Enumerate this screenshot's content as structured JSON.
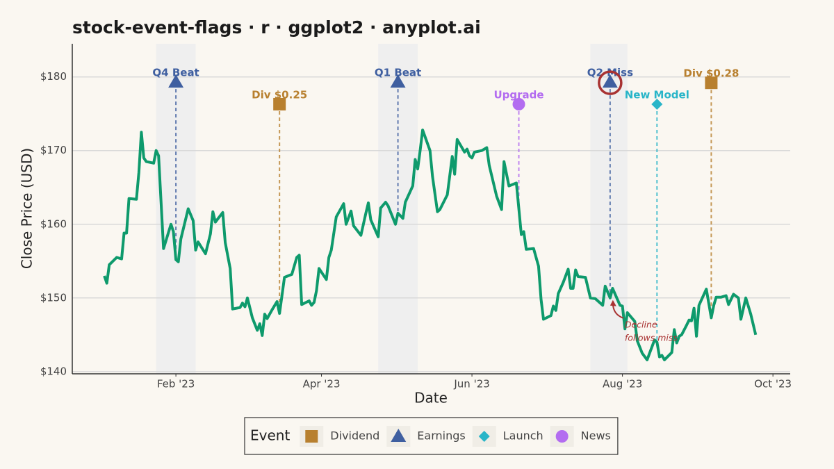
{
  "chart_data": {
    "type": "line",
    "title": "stock-event-flags · r · ggplot2 · anyplot.ai",
    "x_label": "Date",
    "y_label": "Close Price (USD)",
    "color": "#0e9a6c",
    "x": [
      "2023-01-03",
      "2023-01-04",
      "2023-01-05",
      "2023-01-08",
      "2023-01-10",
      "2023-01-11",
      "2023-01-12",
      "2023-01-13",
      "2023-01-16",
      "2023-01-17",
      "2023-01-18",
      "2023-01-19",
      "2023-01-20",
      "2023-01-23",
      "2023-01-24",
      "2023-01-25",
      "2023-01-27",
      "2023-01-30",
      "2023-01-31",
      "2023-02-01",
      "2023-02-02",
      "2023-02-03",
      "2023-02-06",
      "2023-02-08",
      "2023-02-09",
      "2023-02-10",
      "2023-02-13",
      "2023-02-15",
      "2023-02-16",
      "2023-02-17",
      "2023-02-20",
      "2023-02-21",
      "2023-02-23",
      "2023-02-24",
      "2023-02-27",
      "2023-02-28",
      "2023-03-01",
      "2023-03-02",
      "2023-03-04",
      "2023-03-06",
      "2023-03-07",
      "2023-03-08",
      "2023-03-09",
      "2023-03-10",
      "2023-03-12",
      "2023-03-14",
      "2023-03-15",
      "2023-03-17",
      "2023-03-20",
      "2023-03-22",
      "2023-03-23",
      "2023-03-24",
      "2023-03-27",
      "2023-03-28",
      "2023-03-29",
      "2023-03-30",
      "2023-03-31",
      "2023-04-03",
      "2023-04-04",
      "2023-04-05",
      "2023-04-07",
      "2023-04-10",
      "2023-04-11",
      "2023-04-13",
      "2023-04-14",
      "2023-04-17",
      "2023-04-19",
      "2023-04-20",
      "2023-04-21",
      "2023-04-24",
      "2023-04-25",
      "2023-04-27",
      "2023-04-28",
      "2023-05-01",
      "2023-05-02",
      "2023-05-04",
      "2023-05-05",
      "2023-05-08",
      "2023-05-09",
      "2023-05-10",
      "2023-05-11",
      "2023-05-12",
      "2023-05-15",
      "2023-05-16",
      "2023-05-18",
      "2023-05-19",
      "2023-05-22",
      "2023-05-24",
      "2023-05-25",
      "2023-05-26",
      "2023-05-29",
      "2023-05-30",
      "2023-05-31",
      "2023-06-01",
      "2023-06-02",
      "2023-06-05",
      "2023-06-07",
      "2023-06-08",
      "2023-06-11",
      "2023-06-13",
      "2023-06-14",
      "2023-06-16",
      "2023-06-19",
      "2023-06-21",
      "2023-06-22",
      "2023-06-23",
      "2023-06-26",
      "2023-06-28",
      "2023-06-29",
      "2023-06-30",
      "2023-07-03",
      "2023-07-04",
      "2023-07-05",
      "2023-07-06",
      "2023-07-08",
      "2023-07-10",
      "2023-07-11",
      "2023-07-12",
      "2023-07-13",
      "2023-07-14",
      "2023-07-17",
      "2023-07-19",
      "2023-07-21",
      "2023-07-24",
      "2023-07-25",
      "2023-07-27",
      "2023-07-28",
      "2023-07-31",
      "2023-08-01",
      "2023-08-02",
      "2023-08-03",
      "2023-08-06",
      "2023-08-07",
      "2023-08-09",
      "2023-08-11",
      "2023-08-14",
      "2023-08-15",
      "2023-08-16",
      "2023-08-17",
      "2023-08-18",
      "2023-08-21",
      "2023-08-22",
      "2023-08-23",
      "2023-08-24",
      "2023-08-25",
      "2023-08-27",
      "2023-08-28",
      "2023-08-29",
      "2023-08-30",
      "2023-08-31",
      "2023-09-01",
      "2023-09-04",
      "2023-09-06",
      "2023-09-07",
      "2023-09-08",
      "2023-09-10",
      "2023-09-12",
      "2023-09-13",
      "2023-09-15",
      "2023-09-17",
      "2023-09-18",
      "2023-09-20",
      "2023-09-22",
      "2023-09-24"
    ],
    "values": [
      153,
      152,
      154.5,
      155.5,
      155.3,
      158.8,
      158.8,
      163.5,
      163.4,
      167,
      172.5,
      169,
      168.5,
      168.3,
      170,
      169.3,
      156.7,
      160,
      159,
      155.2,
      154.9,
      158,
      162.1,
      160.5,
      156.5,
      157.6,
      156,
      158.7,
      161.7,
      160.3,
      161.6,
      157.5,
      154,
      148.5,
      148.7,
      149.3,
      148.8,
      150,
      147.3,
      145.6,
      146.5,
      144.9,
      147.8,
      147.2,
      148.4,
      149.5,
      147.9,
      152.8,
      153.2,
      155.5,
      155.8,
      149.1,
      149.6,
      149,
      149.4,
      151,
      154,
      152.5,
      155.5,
      156.5,
      161,
      162.8,
      160,
      161.8,
      159.8,
      158.5,
      161.5,
      162.9,
      160.6,
      158.3,
      162.2,
      163,
      162.5,
      160,
      161.5,
      160.8,
      163,
      165.2,
      168.8,
      167.5,
      170,
      172.8,
      170,
      166.5,
      161.7,
      162,
      164,
      169.2,
      166.8,
      171.5,
      169.8,
      170.2,
      169.3,
      169,
      169.8,
      170,
      170.4,
      168,
      163.8,
      162,
      168.5,
      165.2,
      165.6,
      158.6,
      159,
      156.6,
      156.7,
      154.3,
      149.8,
      147.1,
      147.6,
      148.9,
      148.3,
      150.6,
      152.1,
      153.9,
      151.3,
      151.3,
      153.8,
      152.9,
      152.8,
      150,
      149.9,
      149,
      151.6,
      150,
      151.3,
      149,
      148.9,
      145.8,
      148,
      146.8,
      144.2,
      142.5,
      141.6,
      144.3,
      144,
      142,
      142.2,
      141.6,
      142.6,
      145.7,
      143.9,
      144.8,
      145,
      146.3,
      147,
      146.9,
      148.6,
      144.8,
      149,
      151.2,
      147.3,
      149,
      150.1,
      150.1,
      150.3,
      149.1,
      150.5,
      150,
      147.1,
      150,
      147.8,
      145
    ],
    "xlim": [
      "2022-12-21",
      "2023-10-08"
    ],
    "xticks": [
      {
        "value": "2023-02-01",
        "label": "Feb '23"
      },
      {
        "value": "2023-04-01",
        "label": "Apr '23"
      },
      {
        "value": "2023-06-01",
        "label": "Jun '23"
      },
      {
        "value": "2023-08-01",
        "label": "Aug '23"
      },
      {
        "value": "2023-10-01",
        "label": "Oct '23"
      }
    ],
    "ylim": [
      139.7,
      184.5
    ],
    "yticks": [
      {
        "value": 140,
        "label": "$140"
      },
      {
        "value": 150,
        "label": "$150"
      },
      {
        "value": 160,
        "label": "$160"
      },
      {
        "value": 170,
        "label": "$170"
      },
      {
        "value": 180,
        "label": "$180"
      }
    ],
    "grid": true,
    "windows": [
      {
        "start": "2023-01-24",
        "end": "2023-02-09"
      },
      {
        "start": "2023-04-24",
        "end": "2023-05-10"
      },
      {
        "start": "2023-07-19",
        "end": "2023-08-03"
      }
    ],
    "events": [
      {
        "date": "2023-02-01",
        "label": "Q4 Beat",
        "type": "Earnings",
        "y": 179.3
      },
      {
        "date": "2023-03-15",
        "label": "Div $0.25",
        "type": "Dividend",
        "y": 176.3
      },
      {
        "date": "2023-05-02",
        "label": "Q1 Beat",
        "type": "Earnings",
        "y": 179.3
      },
      {
        "date": "2023-06-20",
        "label": "Upgrade",
        "type": "News",
        "y": 176.3
      },
      {
        "date": "2023-07-27",
        "label": "Q2 Miss",
        "type": "Earnings",
        "y": 179.3,
        "highlight": true
      },
      {
        "date": "2023-08-15",
        "label": "New Model",
        "type": "Launch",
        "y": 176.3
      },
      {
        "date": "2023-09-06",
        "label": "Div $0.28",
        "type": "Dividend",
        "y": 179.2
      }
    ],
    "event_types": [
      {
        "name": "Dividend",
        "color": "#b8802f",
        "shape": "square"
      },
      {
        "name": "Earnings",
        "color": "#3f5fa0",
        "shape": "triangle"
      },
      {
        "name": "Launch",
        "color": "#29b5c8",
        "shape": "diamond"
      },
      {
        "name": "News",
        "color": "#b36cf0",
        "shape": "circle"
      }
    ],
    "legend_title": "Event",
    "legend_position": "bottom",
    "annotation": {
      "text": [
        "Decline",
        "follows miss"
      ],
      "color": "#a83232"
    }
  }
}
